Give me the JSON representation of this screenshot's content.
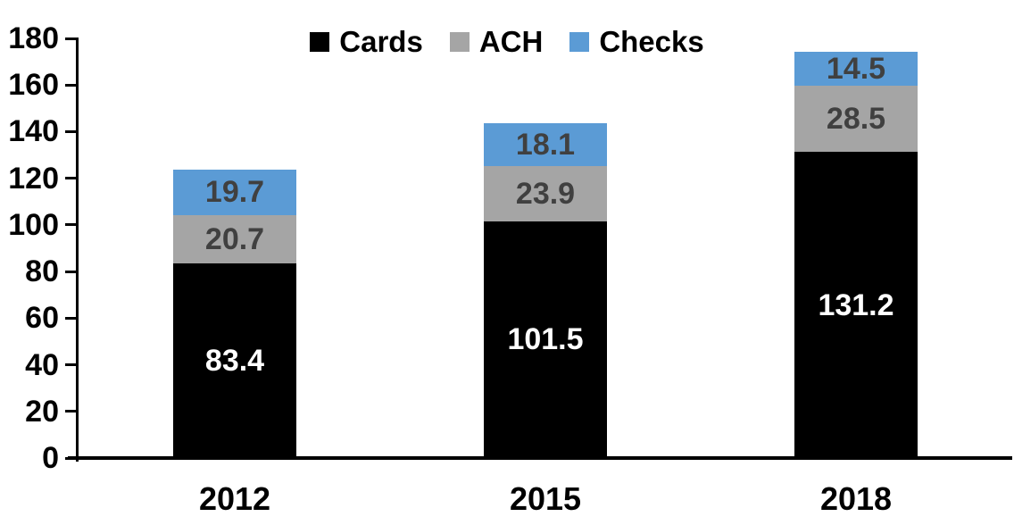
{
  "chart_data": {
    "type": "bar",
    "stacked": true,
    "title": "",
    "categories": [
      "2012",
      "2015",
      "2018"
    ],
    "series": [
      {
        "name": "Cards",
        "color": "#000000",
        "label_color": "#ffffff",
        "values": [
          83.4,
          101.5,
          131.2
        ]
      },
      {
        "name": "ACH",
        "color": "#a5a5a5",
        "label_color": "#404040",
        "values": [
          20.7,
          23.9,
          28.5
        ]
      },
      {
        "name": "Checks",
        "color": "#5b9bd5",
        "label_color": "#404040",
        "values": [
          19.7,
          18.1,
          14.5
        ]
      }
    ],
    "totals": [
      123.8,
      143.5,
      174.2
    ],
    "y_ticks": [
      0,
      20,
      40,
      60,
      80,
      100,
      120,
      140,
      160,
      180
    ],
    "ylim": [
      0,
      180
    ],
    "xlabel": "",
    "ylabel": "",
    "grid": false,
    "legend": {
      "position": "top",
      "entries": [
        "Cards",
        "ACH",
        "Checks"
      ]
    },
    "axis_color": "#000000"
  }
}
